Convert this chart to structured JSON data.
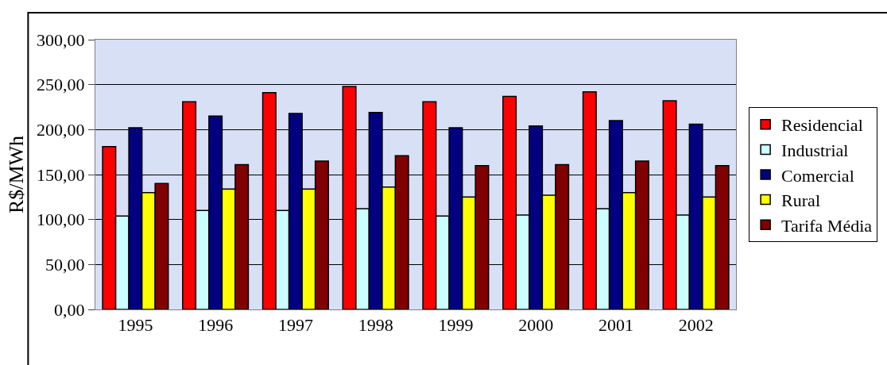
{
  "chart_data": {
    "type": "bar",
    "ylabel": "R$/MWh",
    "categories": [
      "1995",
      "1996",
      "1997",
      "1998",
      "1999",
      "2000",
      "2001",
      "2002"
    ],
    "series": [
      {
        "name": "Residencial",
        "color": "#ff0000",
        "values": [
          181,
          231,
          241,
          248,
          231,
          237,
          242,
          232
        ]
      },
      {
        "name": "Industrial",
        "color": "#ccffff",
        "values": [
          104,
          110,
          110,
          112,
          104,
          105,
          112,
          105
        ]
      },
      {
        "name": "Comercial",
        "color": "#000080",
        "values": [
          202,
          215,
          218,
          219,
          202,
          204,
          210,
          206
        ]
      },
      {
        "name": "Rural",
        "color": "#ffff00",
        "values": [
          130,
          134,
          134,
          136,
          125,
          127,
          130,
          125
        ]
      },
      {
        "name": "Tarifa Média",
        "color": "#800000",
        "values": [
          140,
          161,
          165,
          171,
          160,
          161,
          165,
          160
        ]
      }
    ],
    "ylim": [
      0,
      300
    ],
    "yticks": [
      {
        "value": 0,
        "label": "0,00"
      },
      {
        "value": 50,
        "label": "50,00"
      },
      {
        "value": 100,
        "label": "100,00"
      },
      {
        "value": 150,
        "label": "150,00"
      },
      {
        "value": 200,
        "label": "200,00"
      },
      {
        "value": 250,
        "label": "250,00"
      },
      {
        "value": 300,
        "label": "300,00"
      }
    ],
    "grid": "y",
    "legend": "right"
  }
}
